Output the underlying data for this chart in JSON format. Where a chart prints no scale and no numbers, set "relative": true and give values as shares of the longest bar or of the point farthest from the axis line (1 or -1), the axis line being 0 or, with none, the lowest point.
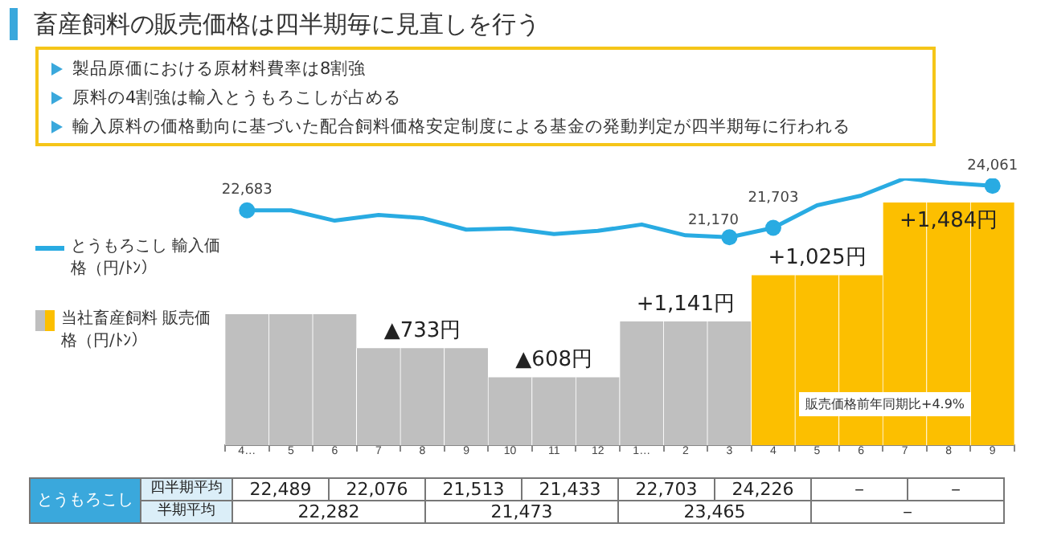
{
  "chart_data": [
    {
      "type": "line",
      "title": "畜産飼料の販売価格は四半期毎に見直しを行う",
      "categories": [
        "4…",
        "5",
        "6",
        "7",
        "8",
        "9",
        "10",
        "11",
        "12",
        "1…",
        "2",
        "3",
        "4",
        "5",
        "6",
        "7",
        "8",
        "9"
      ],
      "series": [
        {
          "name": "とうもろこし 輸入価格（円/ﾄﾝ）",
          "color": "#29abe2",
          "marker": "none",
          "values": [
            22683,
            22683,
            22105,
            22430,
            22250,
            21600,
            21670,
            21350,
            21530,
            21890,
            21280,
            21170,
            21703,
            22970,
            23510,
            24480,
            24230,
            24061
          ]
        },
        {
          "type": "scatter",
          "color": "#29abe2",
          "marker": "circle",
          "values": [
            22683,
            null,
            null,
            null,
            null,
            null,
            null,
            null,
            null,
            null,
            null,
            21170,
            21703,
            null,
            null,
            null,
            null,
            24061
          ],
          "value_labels": [
            "22,683",
            null,
            null,
            null,
            null,
            null,
            null,
            null,
            null,
            null,
            null,
            "21,170",
            "21,703",
            null,
            null,
            null,
            null,
            "24,061"
          ]
        }
      ],
      "legend": "left",
      "tick_labels": "x",
      "grid": false,
      "annotations": [
        "製品原価における原材料費率は8割強",
        "原料の4割強は輸入とうもろこしが占める",
        "輸入原料の価格動向に基づいた配合飼料価格安定制度による基金の発動判定が四半期毎に行われる",
        "とうもろこし",
        "四半期平均",
        "22,489",
        "22,076",
        "21,513",
        "21,433",
        "22,703",
        "24,226",
        "－",
        "－",
        "半期平均",
        "22,282",
        "21,473",
        "23,465",
        "－"
      ]
    },
    {
      "type": "bar",
      "categories": [
        null,
        null,
        null,
        null,
        null,
        null,
        null,
        null,
        null,
        null,
        null,
        null,
        null,
        null,
        null,
        null,
        null,
        null
      ],
      "series": [
        {
          "name": "当社畜産飼料 販売価格（円/ﾄﾝ）",
          "colors": [
            "#bfbfbf",
            "#bfbfbf",
            "#bfbfbf",
            "#bfbfbf",
            "#bfbfbf",
            "#bfbfbf",
            "#bfbfbf",
            "#bfbfbf",
            "#bfbfbf",
            "#bfbfbf",
            "#bfbfbf",
            "#bfbfbf",
            "#fcbf00",
            "#fcbf00",
            "#fcbf00",
            "#fcbf00",
            "#fcbf00",
            "#fcbf00"
          ],
          "values": [
            0.54,
            0.54,
            0.54,
            0.4,
            0.4,
            0.4,
            0.28,
            0.28,
            0.28,
            0.51,
            0.51,
            0.51,
            0.7,
            0.7,
            0.7,
            1,
            1,
            1
          ]
        }
      ],
      "relative": true,
      "legend": "left",
      "tick_labels": false,
      "grid": false,
      "annotations": [
        "▲733円",
        "▲608円",
        "+1,141円",
        "+1,025円",
        "+1,484円",
        "販売価格前年同期比+4.9%"
      ]
    }
  ]
}
